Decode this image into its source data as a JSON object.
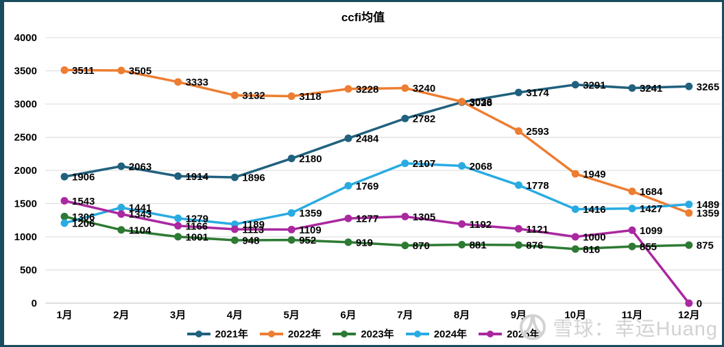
{
  "title": "ccfi均值",
  "watermark": {
    "brand": "雪球：幸运Huang",
    "logo_icon": "xueqiu-snowball-logo"
  },
  "chart_data": {
    "type": "line",
    "title": "ccfi均值",
    "x": [
      "1月",
      "2月",
      "3月",
      "4月",
      "5月",
      "6月",
      "7月",
      "8月",
      "9月",
      "10月",
      "11月",
      "12月"
    ],
    "yticks": [
      0,
      500,
      1000,
      1500,
      2000,
      2500,
      3000,
      3500,
      4000
    ],
    "ylim": [
      0,
      4000
    ],
    "grid": true,
    "data_labels": true,
    "legend_position": "bottom",
    "series": [
      {
        "name": "2021年",
        "color": "#20617E",
        "values": [
          1906,
          2063,
          1914,
          1896,
          2180,
          2484,
          2782,
          3028,
          3174,
          3291,
          3241,
          3265
        ]
      },
      {
        "name": "2022年",
        "color": "#ED7D31",
        "values": [
          3511,
          3505,
          3333,
          3132,
          3118,
          3228,
          3240,
          3036,
          2593,
          1949,
          1684,
          1359
        ]
      },
      {
        "name": "2023年",
        "color": "#2D7A33",
        "values": [
          1306,
          1104,
          1001,
          948,
          952,
          919,
          870,
          881,
          876,
          816,
          855,
          875
        ]
      },
      {
        "name": "2024年",
        "color": "#29ABE2",
        "values": [
          1206,
          1441,
          1279,
          1189,
          1359,
          1769,
          2107,
          2068,
          1778,
          1416,
          1427,
          1489
        ]
      },
      {
        "name": "2025年",
        "color": "#AA28A0",
        "values": [
          1543,
          1343,
          1166,
          1113,
          1109,
          1277,
          1305,
          1192,
          1121,
          1000,
          1099,
          0
        ]
      }
    ]
  }
}
